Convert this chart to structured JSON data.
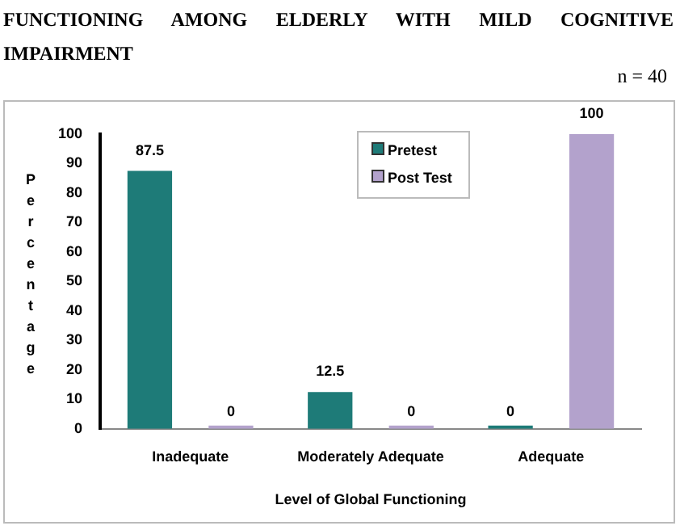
{
  "chart_data": {
    "type": "bar",
    "title": "FUNCTIONING AMONG ELDERLY WITH MILD COGNITIVE IMPAIRMENT",
    "annotations": [
      "n = 40"
    ],
    "xlabel": "Level of Global Functioning",
    "ylabel": "Percentage",
    "categories": [
      "Inadequate",
      "Moderately Adequate",
      "Adequate"
    ],
    "series": [
      {
        "name": "Pretest",
        "color": "#1e7b78",
        "values": [
          87.5,
          12.5,
          0
        ]
      },
      {
        "name": "Post Test",
        "color": "#b3a2cc",
        "values": [
          0,
          0,
          100
        ]
      }
    ],
    "ylim": [
      0,
      100
    ],
    "yticks": [
      0,
      10,
      20,
      30,
      40,
      50,
      60,
      70,
      80,
      90,
      100
    ],
    "grid": false,
    "legend": "top",
    "data_labels": true
  }
}
